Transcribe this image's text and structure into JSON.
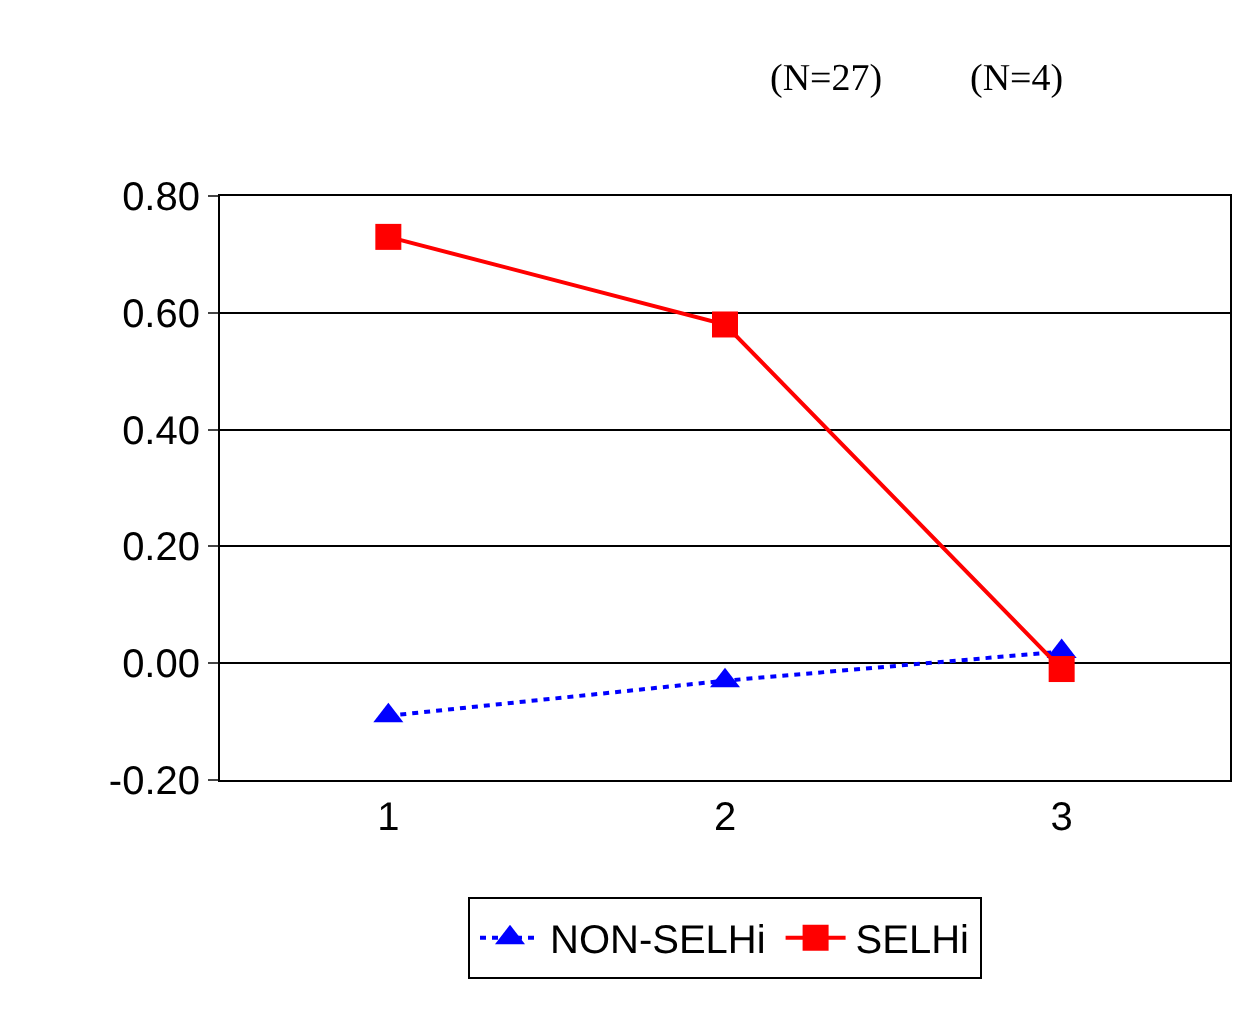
{
  "chart_data": {
    "type": "line",
    "categories": [
      "1",
      "2",
      "3"
    ],
    "series": [
      {
        "name": "NON-SELHi",
        "color": "#0000ff",
        "values": [
          -0.09,
          -0.03,
          0.02
        ],
        "marker": "triangle",
        "line_style": "dotted"
      },
      {
        "name": "SELHi",
        "color": "#ff0000",
        "values": [
          0.73,
          0.58,
          -0.01
        ],
        "marker": "square",
        "line_style": "solid"
      }
    ],
    "ylim": [
      -0.2,
      0.8
    ],
    "yticks": [
      {
        "value": -0.2,
        "label": "-0.20"
      },
      {
        "value": 0,
        "label": "0.00"
      },
      {
        "value": 0.2,
        "label": "0.20"
      },
      {
        "value": 0.4,
        "label": "0.40"
      },
      {
        "value": 0.6,
        "label": "0.60"
      },
      {
        "value": 0.8,
        "label": "0.80"
      }
    ],
    "grid": "y",
    "legend": "bottom",
    "annotations": [
      "(N=27)",
      "(N=4)"
    ]
  }
}
